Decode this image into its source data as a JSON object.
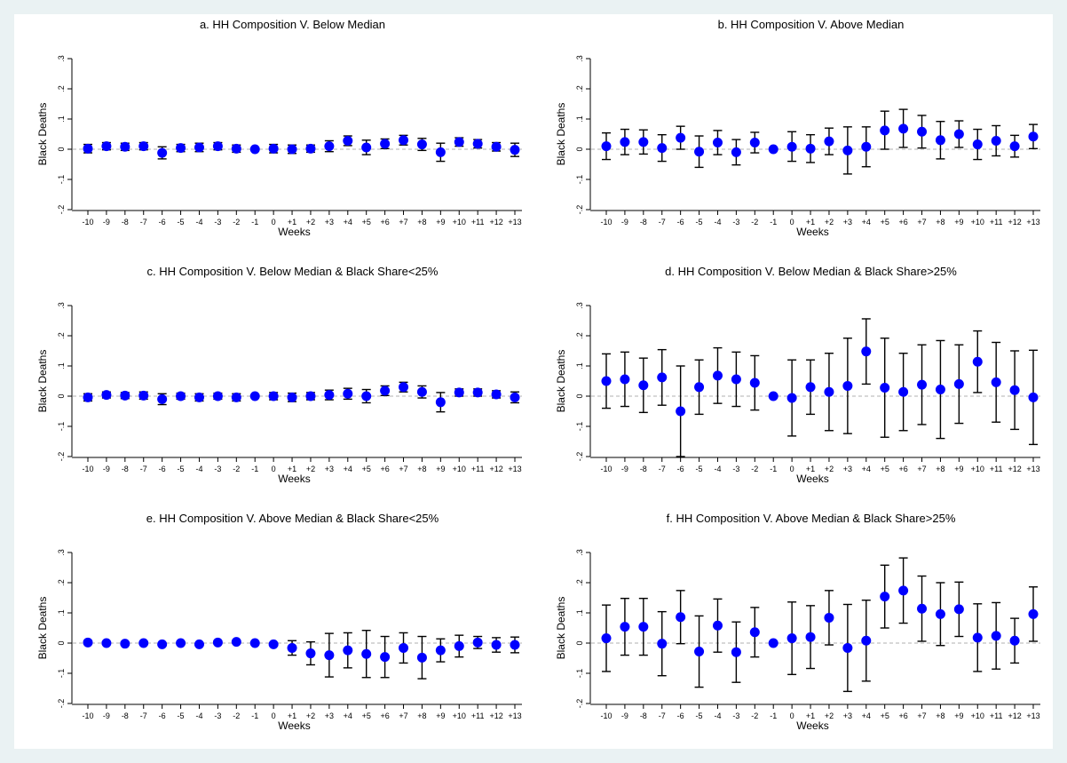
{
  "colors": {
    "background": "#eaf2f3",
    "plot_background": "#ffffff",
    "marker": "#0000ff",
    "error_bar": "#000000",
    "zero_line": "#999999"
  },
  "chart_data": [
    {
      "type": "scatter",
      "title": "a. HH Composition V. Below Median",
      "xlabel": "Weeks",
      "ylabel": "Black Deaths",
      "x": [
        "-10",
        "-9",
        "-8",
        "-7",
        "-6",
        "-5",
        "-4",
        "-3",
        "-2",
        "-1",
        "0",
        "+1",
        "+2",
        "+3",
        "+4",
        "+5",
        "+6",
        "+7",
        "+8",
        "+9",
        "+10",
        "+11",
        "+12",
        "+13"
      ],
      "yticks": [
        "-.2",
        "-.1",
        "0",
        ".1",
        ".2",
        ".3"
      ],
      "ylim": [
        -0.2,
        0.3
      ],
      "grid": false,
      "reference_line": 0,
      "values": [
        0.002,
        0.01,
        0.008,
        0.01,
        -0.012,
        0.004,
        0.006,
        0.01,
        0.002,
        0.0,
        0.002,
        0.0,
        0.002,
        0.01,
        0.028,
        0.006,
        0.018,
        0.03,
        0.016,
        -0.01,
        0.024,
        0.018,
        0.008,
        -0.002
      ],
      "lower": [
        -0.012,
        -0.002,
        -0.004,
        -0.002,
        -0.032,
        -0.008,
        -0.008,
        -0.002,
        -0.01,
        0.0,
        -0.012,
        -0.014,
        -0.01,
        -0.008,
        0.012,
        -0.018,
        0.002,
        0.014,
        -0.004,
        -0.04,
        0.01,
        0.004,
        -0.006,
        -0.024
      ],
      "upper": [
        0.016,
        0.022,
        0.02,
        0.022,
        0.008,
        0.016,
        0.02,
        0.022,
        0.014,
        0.0,
        0.016,
        0.014,
        0.014,
        0.028,
        0.044,
        0.03,
        0.034,
        0.046,
        0.036,
        0.02,
        0.038,
        0.032,
        0.022,
        0.02
      ]
    },
    {
      "type": "scatter",
      "title": "b. HH Composition V. Above Median",
      "xlabel": "Weeks",
      "ylabel": "Black Deaths",
      "x": [
        "-10",
        "-9",
        "-8",
        "-7",
        "-6",
        "-5",
        "-4",
        "-3",
        "-2",
        "-1",
        "0",
        "+1",
        "+2",
        "+3",
        "+4",
        "+5",
        "+6",
        "+7",
        "+8",
        "+9",
        "+10",
        "+11",
        "+12",
        "+13"
      ],
      "yticks": [
        "-.2",
        "-.1",
        "0",
        ".1",
        ".2",
        ".3"
      ],
      "ylim": [
        -0.2,
        0.3
      ],
      "grid": false,
      "reference_line": 0,
      "values": [
        0.01,
        0.024,
        0.024,
        0.004,
        0.038,
        -0.008,
        0.022,
        -0.01,
        0.022,
        0.0,
        0.008,
        0.002,
        0.026,
        -0.004,
        0.008,
        0.062,
        0.068,
        0.058,
        0.03,
        0.05,
        0.016,
        0.028,
        0.01,
        0.042
      ],
      "lower": [
        -0.034,
        -0.018,
        -0.016,
        -0.04,
        0.0,
        -0.06,
        -0.018,
        -0.052,
        -0.012,
        0.0,
        -0.04,
        -0.044,
        -0.018,
        -0.082,
        -0.058,
        0.0,
        0.006,
        0.004,
        -0.032,
        0.006,
        -0.034,
        -0.022,
        -0.026,
        0.002
      ],
      "upper": [
        0.054,
        0.066,
        0.064,
        0.048,
        0.076,
        0.044,
        0.062,
        0.032,
        0.056,
        0.0,
        0.058,
        0.048,
        0.07,
        0.074,
        0.074,
        0.126,
        0.132,
        0.112,
        0.092,
        0.094,
        0.066,
        0.078,
        0.046,
        0.082
      ]
    },
    {
      "type": "scatter",
      "title": "c. HH Composition V. Below Median & Black Share<25%",
      "xlabel": "Weeks",
      "ylabel": "Black Deaths",
      "x": [
        "-10",
        "-9",
        "-8",
        "-7",
        "-6",
        "-5",
        "-4",
        "-3",
        "-2",
        "-1",
        "0",
        "+1",
        "+2",
        "+3",
        "+4",
        "+5",
        "+6",
        "+7",
        "+8",
        "+9",
        "+10",
        "+11",
        "+12",
        "+13"
      ],
      "yticks": [
        "-.2",
        "-.1",
        "0",
        ".1",
        ".2",
        ".3"
      ],
      "ylim": [
        -0.2,
        0.3
      ],
      "grid": false,
      "reference_line": 0,
      "values": [
        -0.004,
        0.004,
        0.002,
        0.002,
        -0.01,
        0.0,
        -0.004,
        0.0,
        -0.004,
        0.0,
        0.0,
        -0.004,
        0.0,
        0.004,
        0.008,
        0.0,
        0.018,
        0.03,
        0.014,
        -0.02,
        0.012,
        0.012,
        0.006,
        -0.004
      ],
      "lower": [
        -0.016,
        -0.006,
        -0.008,
        -0.01,
        -0.028,
        -0.01,
        -0.016,
        -0.01,
        -0.016,
        0.0,
        -0.012,
        -0.018,
        -0.012,
        -0.012,
        -0.01,
        -0.022,
        0.002,
        0.014,
        -0.006,
        -0.052,
        0.0,
        0.0,
        -0.006,
        -0.022
      ],
      "upper": [
        0.008,
        0.014,
        0.012,
        0.014,
        0.008,
        0.01,
        0.008,
        0.01,
        0.008,
        0.0,
        0.012,
        0.01,
        0.012,
        0.02,
        0.026,
        0.022,
        0.034,
        0.046,
        0.034,
        0.012,
        0.024,
        0.024,
        0.018,
        0.014
      ]
    },
    {
      "type": "scatter",
      "title": "d. HH Composition V. Below Median & Black Share>25%",
      "xlabel": "Weeks",
      "ylabel": "Black Deaths",
      "x": [
        "-10",
        "-9",
        "-8",
        "-7",
        "-6",
        "-5",
        "-4",
        "-3",
        "-2",
        "-1",
        "0",
        "+1",
        "+2",
        "+3",
        "+4",
        "+5",
        "+6",
        "+7",
        "+8",
        "+9",
        "+10",
        "+11",
        "+12",
        "+13"
      ],
      "yticks": [
        "-.2",
        "-.1",
        "0",
        ".1",
        ".2",
        ".3"
      ],
      "ylim": [
        -0.2,
        0.3
      ],
      "grid": false,
      "reference_line": 0,
      "values": [
        0.05,
        0.056,
        0.036,
        0.062,
        -0.05,
        0.03,
        0.068,
        0.056,
        0.044,
        0.0,
        -0.006,
        0.03,
        0.014,
        0.034,
        0.148,
        0.028,
        0.014,
        0.038,
        0.022,
        0.04,
        0.114,
        0.046,
        0.02,
        -0.004
      ],
      "lower": [
        -0.04,
        -0.034,
        -0.054,
        -0.03,
        -0.2,
        -0.06,
        -0.024,
        -0.034,
        -0.046,
        0.0,
        -0.132,
        -0.06,
        -0.114,
        -0.124,
        0.04,
        -0.136,
        -0.114,
        -0.094,
        -0.14,
        -0.09,
        0.012,
        -0.086,
        -0.11,
        -0.16
      ],
      "upper": [
        0.14,
        0.146,
        0.126,
        0.154,
        0.1,
        0.12,
        0.16,
        0.146,
        0.134,
        0.0,
        0.12,
        0.12,
        0.142,
        0.192,
        0.256,
        0.192,
        0.142,
        0.17,
        0.184,
        0.17,
        0.216,
        0.178,
        0.15,
        0.152
      ]
    },
    {
      "type": "scatter",
      "title": "e. HH Composition V. Above Median & Black Share<25%",
      "xlabel": "Weeks",
      "ylabel": "Black Deaths",
      "x": [
        "-10",
        "-9",
        "-8",
        "-7",
        "-6",
        "-5",
        "-4",
        "-3",
        "-2",
        "-1",
        "0",
        "+1",
        "+2",
        "+3",
        "+4",
        "+5",
        "+6",
        "+7",
        "+8",
        "+9",
        "+10",
        "+11",
        "+12",
        "+13"
      ],
      "yticks": [
        "-.2",
        "-.1",
        "0",
        ".1",
        ".2",
        ".3"
      ],
      "ylim": [
        -0.2,
        0.3
      ],
      "grid": false,
      "reference_line": 0,
      "values": [
        0.002,
        0.0,
        -0.002,
        0.0,
        -0.004,
        0.0,
        -0.004,
        0.002,
        0.004,
        0.0,
        -0.004,
        -0.016,
        -0.034,
        -0.04,
        -0.024,
        -0.036,
        -0.046,
        -0.016,
        -0.048,
        -0.024,
        -0.01,
        0.002,
        -0.006,
        -0.006
      ],
      "lower": [
        -0.002,
        -0.004,
        -0.006,
        -0.004,
        -0.008,
        -0.004,
        -0.008,
        -0.002,
        0.0,
        0.0,
        -0.008,
        -0.04,
        -0.072,
        -0.112,
        -0.082,
        -0.114,
        -0.114,
        -0.066,
        -0.118,
        -0.062,
        -0.046,
        -0.018,
        -0.03,
        -0.032
      ],
      "upper": [
        0.006,
        0.004,
        0.002,
        0.004,
        0.0,
        0.004,
        0.0,
        0.006,
        0.008,
        0.0,
        0.0,
        0.008,
        0.004,
        0.032,
        0.034,
        0.042,
        0.022,
        0.034,
        0.022,
        0.014,
        0.026,
        0.022,
        0.018,
        0.02
      ]
    },
    {
      "type": "scatter",
      "title": "f. HH Composition V. Above Median & Black Share>25%",
      "xlabel": "Weeks",
      "ylabel": "Black Deaths",
      "x": [
        "-10",
        "-9",
        "-8",
        "-7",
        "-6",
        "-5",
        "-4",
        "-3",
        "-2",
        "-1",
        "0",
        "+1",
        "+2",
        "+3",
        "+4",
        "+5",
        "+6",
        "+7",
        "+8",
        "+9",
        "+10",
        "+11",
        "+12",
        "+13"
      ],
      "yticks": [
        "-.2",
        "-.1",
        "0",
        ".1",
        ".2",
        ".3"
      ],
      "ylim": [
        -0.2,
        0.3
      ],
      "grid": false,
      "reference_line": 0,
      "values": [
        0.016,
        0.054,
        0.054,
        -0.002,
        0.086,
        -0.028,
        0.058,
        -0.03,
        0.036,
        0.0,
        0.016,
        0.02,
        0.084,
        -0.016,
        0.008,
        0.154,
        0.174,
        0.114,
        0.096,
        0.112,
        0.018,
        0.024,
        0.008,
        0.096
      ],
      "lower": [
        -0.094,
        -0.04,
        -0.04,
        -0.108,
        -0.002,
        -0.146,
        -0.03,
        -0.13,
        -0.046,
        0.0,
        -0.104,
        -0.084,
        -0.006,
        -0.16,
        -0.126,
        0.05,
        0.066,
        0.006,
        -0.008,
        0.022,
        -0.094,
        -0.086,
        -0.066,
        0.006
      ],
      "upper": [
        0.126,
        0.148,
        0.148,
        0.104,
        0.174,
        0.09,
        0.146,
        0.07,
        0.118,
        0.0,
        0.136,
        0.124,
        0.174,
        0.128,
        0.142,
        0.258,
        0.282,
        0.222,
        0.2,
        0.202,
        0.13,
        0.134,
        0.082,
        0.186
      ]
    }
  ]
}
